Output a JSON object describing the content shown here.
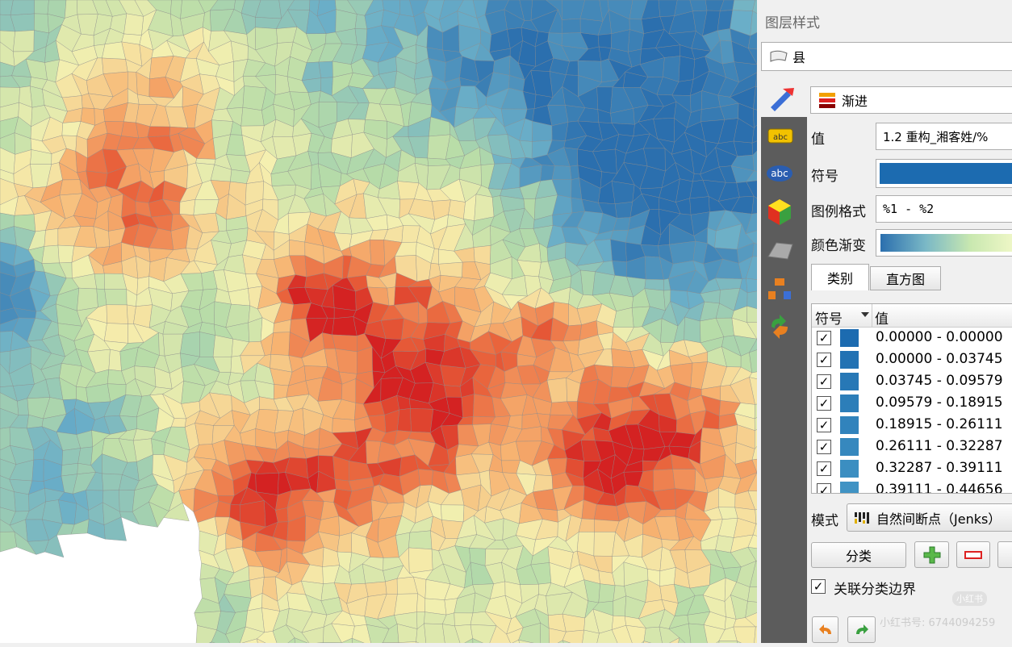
{
  "panel_title": "图层样式",
  "layer": "县",
  "renderer": "渐进",
  "fields": {
    "value_label": "值",
    "value": "1.2 重构_湘客姓/%",
    "symbol_label": "符号",
    "legend_format_label": "图例格式",
    "legend_format": "%1 - %2",
    "color_ramp_label": "颜色渐变"
  },
  "tabs": [
    "类别",
    "直方图"
  ],
  "table": {
    "headers": [
      "符号",
      "值"
    ],
    "rows": [
      {
        "checked": true,
        "color": "#1c6bb0",
        "label": "0.00000 - 0.00000"
      },
      {
        "checked": true,
        "color": "#2272b3",
        "label": "0.00000 - 0.03745"
      },
      {
        "checked": true,
        "color": "#2778b6",
        "label": "0.03745 - 0.09579"
      },
      {
        "checked": true,
        "color": "#2c7eb9",
        "label": "0.09579 - 0.18915"
      },
      {
        "checked": true,
        "color": "#3183bc",
        "label": "0.18915 - 0.26111"
      },
      {
        "checked": true,
        "color": "#3688be",
        "label": "0.26111 - 0.32287"
      },
      {
        "checked": true,
        "color": "#3b8ec1",
        "label": "0.32287 - 0.39111"
      },
      {
        "checked": true,
        "color": "#4093c4",
        "label": "0.39111 - 0.44656"
      }
    ]
  },
  "mode_label": "模式",
  "mode": "自然间断点（Jenks）",
  "classify_button": "分类",
  "link_boundaries": {
    "checked": true,
    "label": "关联分类边界"
  },
  "watermark": {
    "logo": "小红书",
    "id": "小红书号: 6744094259"
  }
}
